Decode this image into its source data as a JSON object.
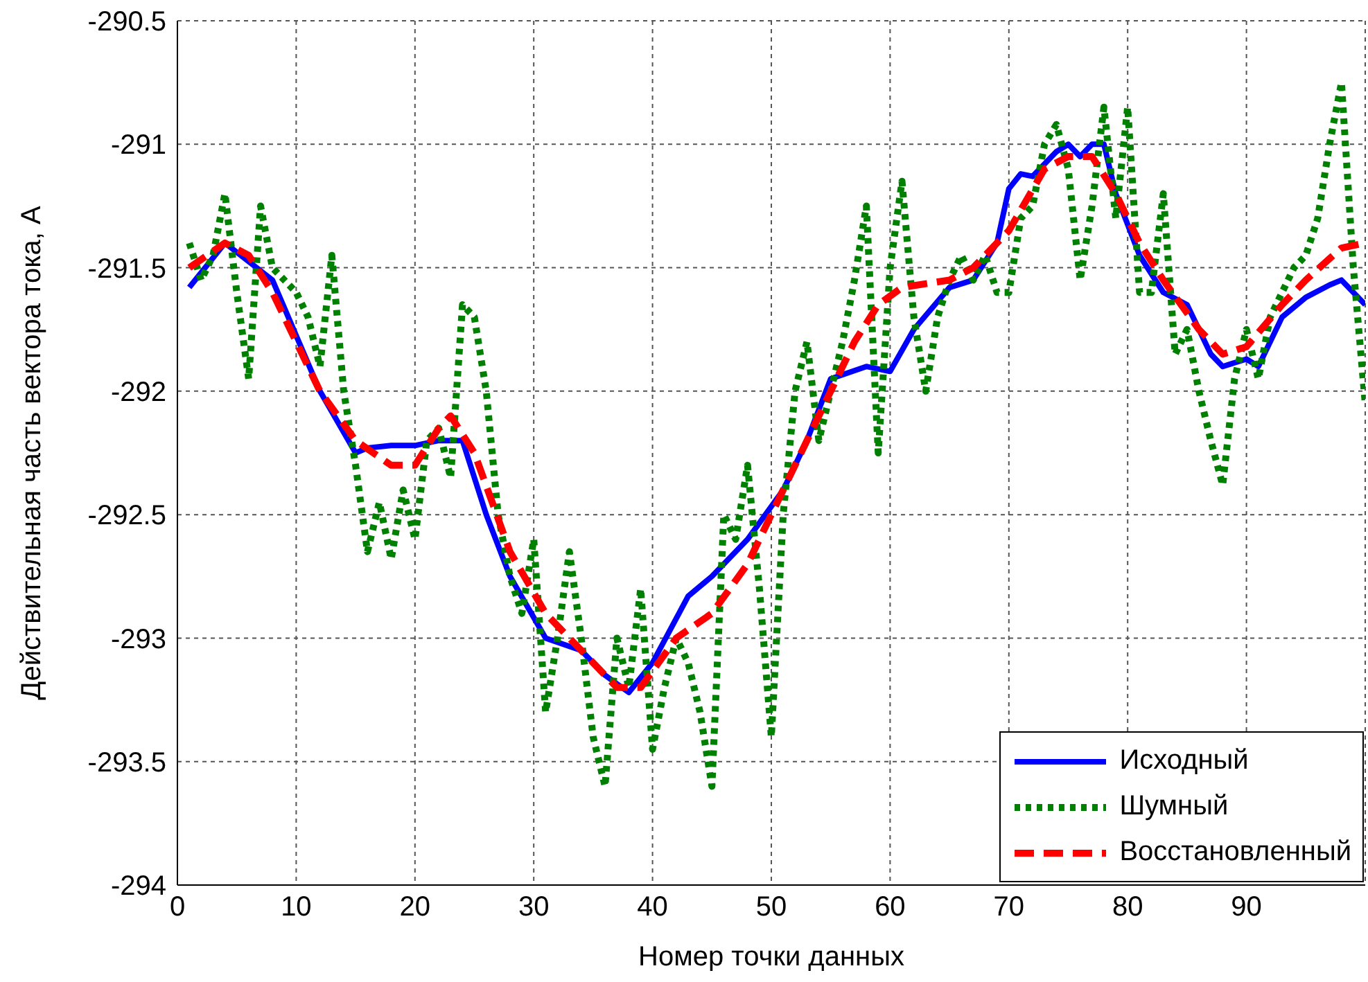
{
  "chart_data": {
    "type": "line",
    "xlabel": "Номер точки данных",
    "ylabel": "Действительная часть вектора тока, А",
    "xlim": [
      0,
      100
    ],
    "xticks": [
      0,
      10,
      20,
      30,
      40,
      50,
      60,
      70,
      80,
      90
    ],
    "ylim": [
      -294,
      -290.5
    ],
    "yticks": [
      -294,
      -293.5,
      -293,
      -292.5,
      -292,
      -291.5,
      -291,
      -290.5
    ],
    "grid": true,
    "legend": "bottom right",
    "marker": "none",
    "series": [
      {
        "name": "Исходный",
        "color": "#0000ff",
        "line_style": "solid",
        "x": [
          1,
          4,
          8,
          12,
          15,
          16,
          18,
          20,
          22,
          24,
          26,
          28,
          31,
          34,
          36,
          38,
          40,
          43,
          45,
          48,
          51,
          53,
          55,
          58,
          60,
          62,
          65,
          67,
          69,
          70,
          71,
          72,
          74,
          75,
          76,
          77,
          78,
          79,
          81,
          83,
          85,
          87,
          88,
          90,
          91,
          93,
          95,
          97,
          98,
          100
        ],
        "values": [
          -291.58,
          -291.4,
          -291.55,
          -292.0,
          -292.25,
          -292.23,
          -292.22,
          -292.22,
          -292.2,
          -292.2,
          -292.5,
          -292.75,
          -293.0,
          -293.05,
          -293.15,
          -293.22,
          -293.1,
          -292.83,
          -292.75,
          -292.6,
          -292.4,
          -292.2,
          -291.95,
          -291.9,
          -291.92,
          -291.75,
          -291.58,
          -291.55,
          -291.4,
          -291.18,
          -291.12,
          -291.13,
          -291.03,
          -291.0,
          -291.05,
          -291.0,
          -291.0,
          -291.2,
          -291.45,
          -291.6,
          -291.65,
          -291.85,
          -291.9,
          -291.87,
          -291.9,
          -291.7,
          -291.62,
          -291.57,
          -291.55,
          -291.65
        ]
      },
      {
        "name": "Шумный",
        "color": "#008000",
        "line_style": "dotted",
        "x": [
          1,
          2,
          3,
          4,
          5,
          6,
          7,
          8,
          9,
          10,
          11,
          12,
          13,
          14,
          15,
          16,
          17,
          18,
          19,
          20,
          21,
          22,
          23,
          24,
          25,
          26,
          27,
          28,
          29,
          30,
          31,
          32,
          33,
          34,
          35,
          36,
          37,
          38,
          39,
          40,
          41,
          42,
          43,
          44,
          45,
          46,
          47,
          48,
          49,
          50,
          51,
          52,
          53,
          54,
          55,
          56,
          57,
          58,
          59,
          60,
          61,
          62,
          63,
          64,
          65,
          66,
          67,
          68,
          69,
          70,
          71,
          72,
          73,
          74,
          75,
          76,
          77,
          78,
          79,
          80,
          81,
          82,
          83,
          84,
          85,
          86,
          87,
          88,
          89,
          90,
          91,
          92,
          93,
          94,
          95,
          96,
          97,
          98,
          99,
          100
        ],
        "values": [
          -291.4,
          -291.55,
          -291.45,
          -291.2,
          -291.6,
          -291.95,
          -291.25,
          -291.5,
          -291.55,
          -291.6,
          -291.7,
          -291.9,
          -291.45,
          -292.0,
          -292.3,
          -292.65,
          -292.45,
          -292.68,
          -292.4,
          -292.6,
          -292.2,
          -292.15,
          -292.35,
          -291.65,
          -291.7,
          -292.0,
          -292.5,
          -292.75,
          -292.9,
          -292.6,
          -293.3,
          -293.0,
          -292.65,
          -293.0,
          -293.4,
          -293.6,
          -293.0,
          -293.2,
          -292.8,
          -293.45,
          -293.2,
          -293.0,
          -293.1,
          -293.3,
          -293.6,
          -292.5,
          -292.6,
          -292.3,
          -292.8,
          -293.4,
          -292.5,
          -292.0,
          -291.8,
          -292.2,
          -292.0,
          -291.8,
          -291.55,
          -291.25,
          -292.25,
          -291.5,
          -291.15,
          -291.7,
          -292.0,
          -291.7,
          -291.55,
          -291.45,
          -291.55,
          -291.45,
          -291.6,
          -291.6,
          -291.3,
          -291.25,
          -291.0,
          -290.92,
          -291.1,
          -291.55,
          -291.25,
          -290.85,
          -291.3,
          -290.85,
          -291.6,
          -291.6,
          -291.2,
          -291.85,
          -291.75,
          -292.0,
          -292.2,
          -292.38,
          -291.95,
          -291.75,
          -291.95,
          -291.7,
          -291.6,
          -291.5,
          -291.45,
          -291.3,
          -291.0,
          -290.75,
          -291.5,
          -292.05
        ]
      },
      {
        "name": "Восстановленный",
        "color": "#ff0000",
        "line_style": "dashed",
        "x": [
          1,
          4,
          6,
          8,
          12,
          15,
          18,
          20,
          22,
          23,
          25,
          28,
          31,
          34,
          37,
          39,
          42,
          45,
          48,
          51,
          54,
          57,
          59,
          61,
          65,
          67,
          70,
          73,
          75,
          77,
          79,
          81,
          83,
          86,
          88,
          90,
          93,
          95,
          98,
          100
        ],
        "values": [
          -291.5,
          -291.4,
          -291.45,
          -291.6,
          -292.0,
          -292.2,
          -292.3,
          -292.3,
          -292.15,
          -292.1,
          -292.25,
          -292.65,
          -292.9,
          -293.05,
          -293.2,
          -293.2,
          -293.0,
          -292.9,
          -292.7,
          -292.4,
          -292.1,
          -291.8,
          -291.65,
          -291.58,
          -291.55,
          -291.5,
          -291.35,
          -291.1,
          -291.05,
          -291.05,
          -291.2,
          -291.4,
          -291.55,
          -291.75,
          -291.85,
          -291.82,
          -291.65,
          -291.55,
          -291.42,
          -291.4
        ]
      }
    ]
  }
}
